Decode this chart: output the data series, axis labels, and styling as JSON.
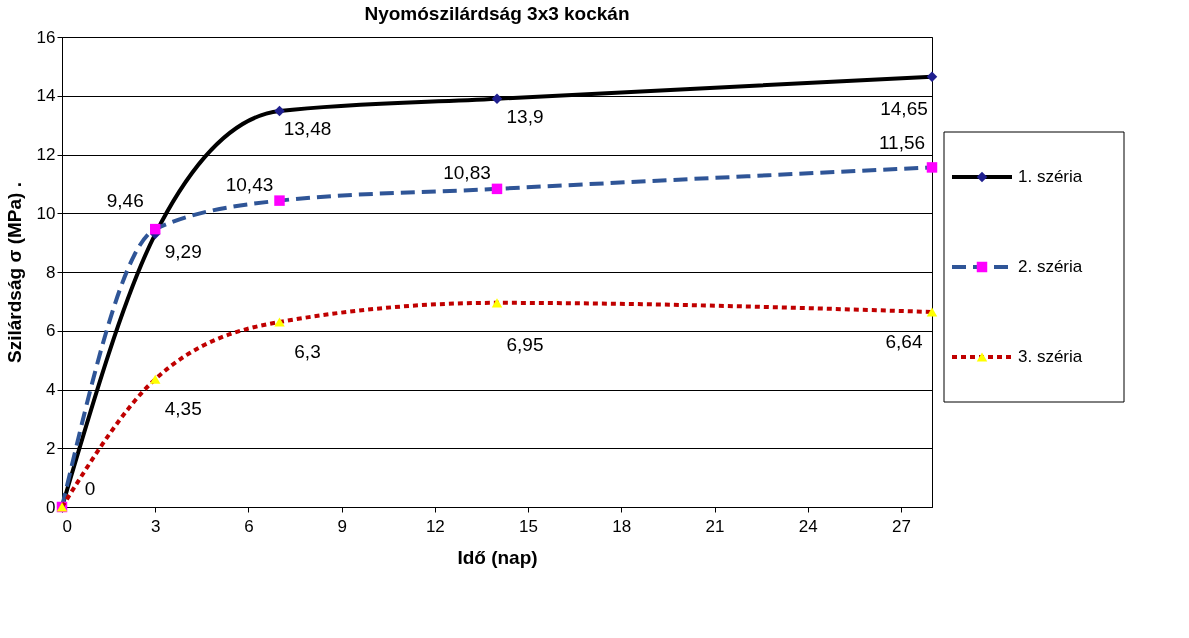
{
  "chart_data": {
    "type": "line",
    "title": "Nyomószilárdság 3x3 kockán",
    "xlabel": "Idő (nap)",
    "ylabel": "Szilárdság σ (MPa) .",
    "x": [
      0,
      3,
      7,
      14,
      28
    ],
    "xlim": [
      0,
      28
    ],
    "xticks": [
      0,
      3,
      6,
      9,
      12,
      15,
      18,
      21,
      24,
      27
    ],
    "ylim": [
      0,
      16
    ],
    "yticks": [
      0,
      2,
      4,
      6,
      8,
      10,
      12,
      14,
      16
    ],
    "grid": "y",
    "legend": "right",
    "series": [
      {
        "name": "1. széria",
        "color": "#000000",
        "colors": [
          "#1f1f8f",
          "#1f1f8f",
          "#1f1f8f",
          "#1f1f8f",
          "#1f1f8f"
        ],
        "marker": "diamond",
        "line_style": "solid",
        "values": [
          0,
          9.29,
          13.48,
          13.9,
          14.65
        ],
        "value_labels": [
          "0",
          "9,29",
          "13,48",
          "13,9",
          "14,65"
        ]
      },
      {
        "name": "2. széria",
        "color": "#2f5597",
        "colors": [
          "#ff00ff",
          "#ff00ff",
          "#ff00ff",
          "#ff00ff",
          "#ff00ff"
        ],
        "marker": "square",
        "line_style": "dashed",
        "values": [
          0,
          9.46,
          10.43,
          10.83,
          11.56
        ],
        "value_labels": [
          null,
          "9,46",
          "10,43",
          "10,83",
          "11,56"
        ]
      },
      {
        "name": "3. széria",
        "color": "#c00000",
        "colors": [
          "#ffff00",
          "#ffff00",
          "#ffff00",
          "#ffff00",
          "#ffff00"
        ],
        "marker": "triangle",
        "line_style": "dotted",
        "values": [
          0,
          4.35,
          6.3,
          6.95,
          6.64
        ],
        "value_labels": [
          null,
          "4,35",
          "6,3",
          "6,95",
          "6,64"
        ]
      }
    ]
  }
}
